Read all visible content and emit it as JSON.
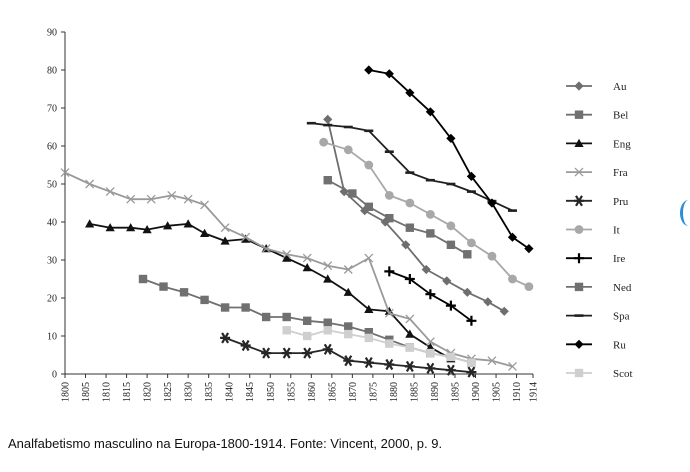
{
  "chart_data": {
    "type": "line",
    "title": "",
    "xlabel": "",
    "ylabel": "",
    "ylim": [
      0,
      90
    ],
    "xlim": [
      1800,
      1914
    ],
    "yticks": [
      0,
      10,
      20,
      30,
      40,
      50,
      60,
      70,
      80,
      90
    ],
    "xticks": [
      "1800",
      "1805",
      "1810",
      "1815",
      "1820",
      "1825",
      "1830",
      "1835",
      "1840",
      "1845",
      "1850",
      "1855",
      "1860",
      "1865",
      "1870",
      "1875",
      "1880",
      "1885",
      "1890",
      "1895",
      "1900",
      "1905",
      "1910",
      "1914"
    ],
    "grid": false,
    "legend_position": "right",
    "series": [
      {
        "name": "Au",
        "color": "#6e6e6e",
        "marker": "diamond",
        "x": [
          1864,
          1868,
          1873,
          1878,
          1883,
          1888,
          1893,
          1898,
          1903,
          1907
        ],
        "y": [
          67,
          48,
          43,
          40,
          34,
          27.5,
          24.5,
          21.5,
          19,
          16.5
        ]
      },
      {
        "name": "Bel",
        "color": "#707070",
        "marker": "square",
        "x": [
          1864,
          1870,
          1874,
          1879,
          1884,
          1889,
          1894,
          1898
        ],
        "y": [
          51,
          47.5,
          44,
          41,
          38.5,
          37,
          34,
          31.5
        ]
      },
      {
        "name": "Eng",
        "color": "#111111",
        "marker": "triangle",
        "x": [
          1806,
          1811,
          1816,
          1820,
          1825,
          1830,
          1834,
          1839,
          1844,
          1849,
          1854,
          1859,
          1864,
          1869,
          1874,
          1879,
          1884,
          1889,
          1894
        ],
        "y": [
          39.5,
          38.5,
          38.5,
          38,
          39,
          39.5,
          37,
          35,
          35.5,
          33,
          30.5,
          28,
          25,
          21.5,
          17,
          16.5,
          10.5,
          7,
          4
        ]
      },
      {
        "name": "Fra",
        "color": "#9a9a9a",
        "marker": "x",
        "x": [
          1800,
          1806,
          1811,
          1816,
          1821,
          1826,
          1830,
          1834,
          1839,
          1844,
          1849,
          1854,
          1859,
          1864,
          1869,
          1874,
          1879,
          1884,
          1889,
          1894,
          1899,
          1904,
          1909
        ],
        "y": [
          53,
          50,
          48,
          46,
          46,
          47,
          46,
          44.5,
          38.5,
          36,
          33,
          31.5,
          30.5,
          28.5,
          27.5,
          30.5,
          16,
          14.5,
          8.5,
          5.5,
          4,
          3.5,
          2
        ]
      },
      {
        "name": "Pru",
        "color": "#262626",
        "marker": "asterisk",
        "x": [
          1839,
          1844,
          1849,
          1854,
          1859,
          1864,
          1869,
          1874,
          1879,
          1884,
          1889,
          1894,
          1899
        ],
        "y": [
          9.5,
          7.5,
          5.5,
          5.5,
          5.5,
          6.5,
          3.5,
          3,
          2.5,
          2,
          1.5,
          1,
          0.5
        ]
      },
      {
        "name": "It",
        "color": "#a8a8a8",
        "marker": "circle",
        "x": [
          1863,
          1869,
          1874,
          1879,
          1884,
          1889,
          1894,
          1899,
          1904,
          1909,
          1913
        ],
        "y": [
          61,
          59,
          55,
          47,
          45,
          42,
          39,
          34.5,
          31,
          25,
          23
        ]
      },
      {
        "name": "Ire",
        "color": "#000000",
        "marker": "plus",
        "x": [
          1879,
          1884,
          1889,
          1894,
          1899
        ],
        "y": [
          27,
          25,
          21,
          18,
          14
        ]
      },
      {
        "name": "Ned",
        "color": "#707070",
        "marker": "square",
        "x": [
          1819,
          1824,
          1829,
          1834,
          1839,
          1844,
          1849,
          1854,
          1859,
          1864,
          1869,
          1874,
          1879,
          1884,
          1889,
          1894,
          1899
        ],
        "y": [
          25,
          23,
          21.5,
          19.5,
          17.5,
          17.5,
          15,
          15,
          14,
          13.5,
          12.5,
          11,
          9,
          7,
          5.5,
          4.5,
          3
        ]
      },
      {
        "name": "Spa",
        "color": "#202020",
        "marker": "dash",
        "x": [
          1860,
          1864,
          1869,
          1874,
          1879,
          1884,
          1889,
          1894,
          1899,
          1904,
          1909
        ],
        "y": [
          66,
          65.5,
          65,
          64,
          58.5,
          53,
          51,
          50,
          48,
          45.5,
          43
        ]
      },
      {
        "name": "Ru",
        "color": "#000000",
        "marker": "diamond",
        "x": [
          1874,
          1879,
          1884,
          1889,
          1894,
          1899,
          1904,
          1909,
          1913
        ],
        "y": [
          80,
          79,
          74,
          69,
          62,
          52,
          45,
          36,
          33
        ]
      },
      {
        "name": "Scot",
        "color": "#cfcfcf",
        "marker": "square",
        "x": [
          1854,
          1859,
          1864,
          1869,
          1874,
          1879,
          1884,
          1889,
          1894,
          1899
        ],
        "y": [
          11.5,
          10,
          11.5,
          10.5,
          9.5,
          8,
          7,
          5.5,
          4.5,
          3
        ]
      }
    ]
  },
  "caption": "Analfabetismo masculino na Europa-1800-1914. Fonte: Vincent, 2000, p. 9."
}
